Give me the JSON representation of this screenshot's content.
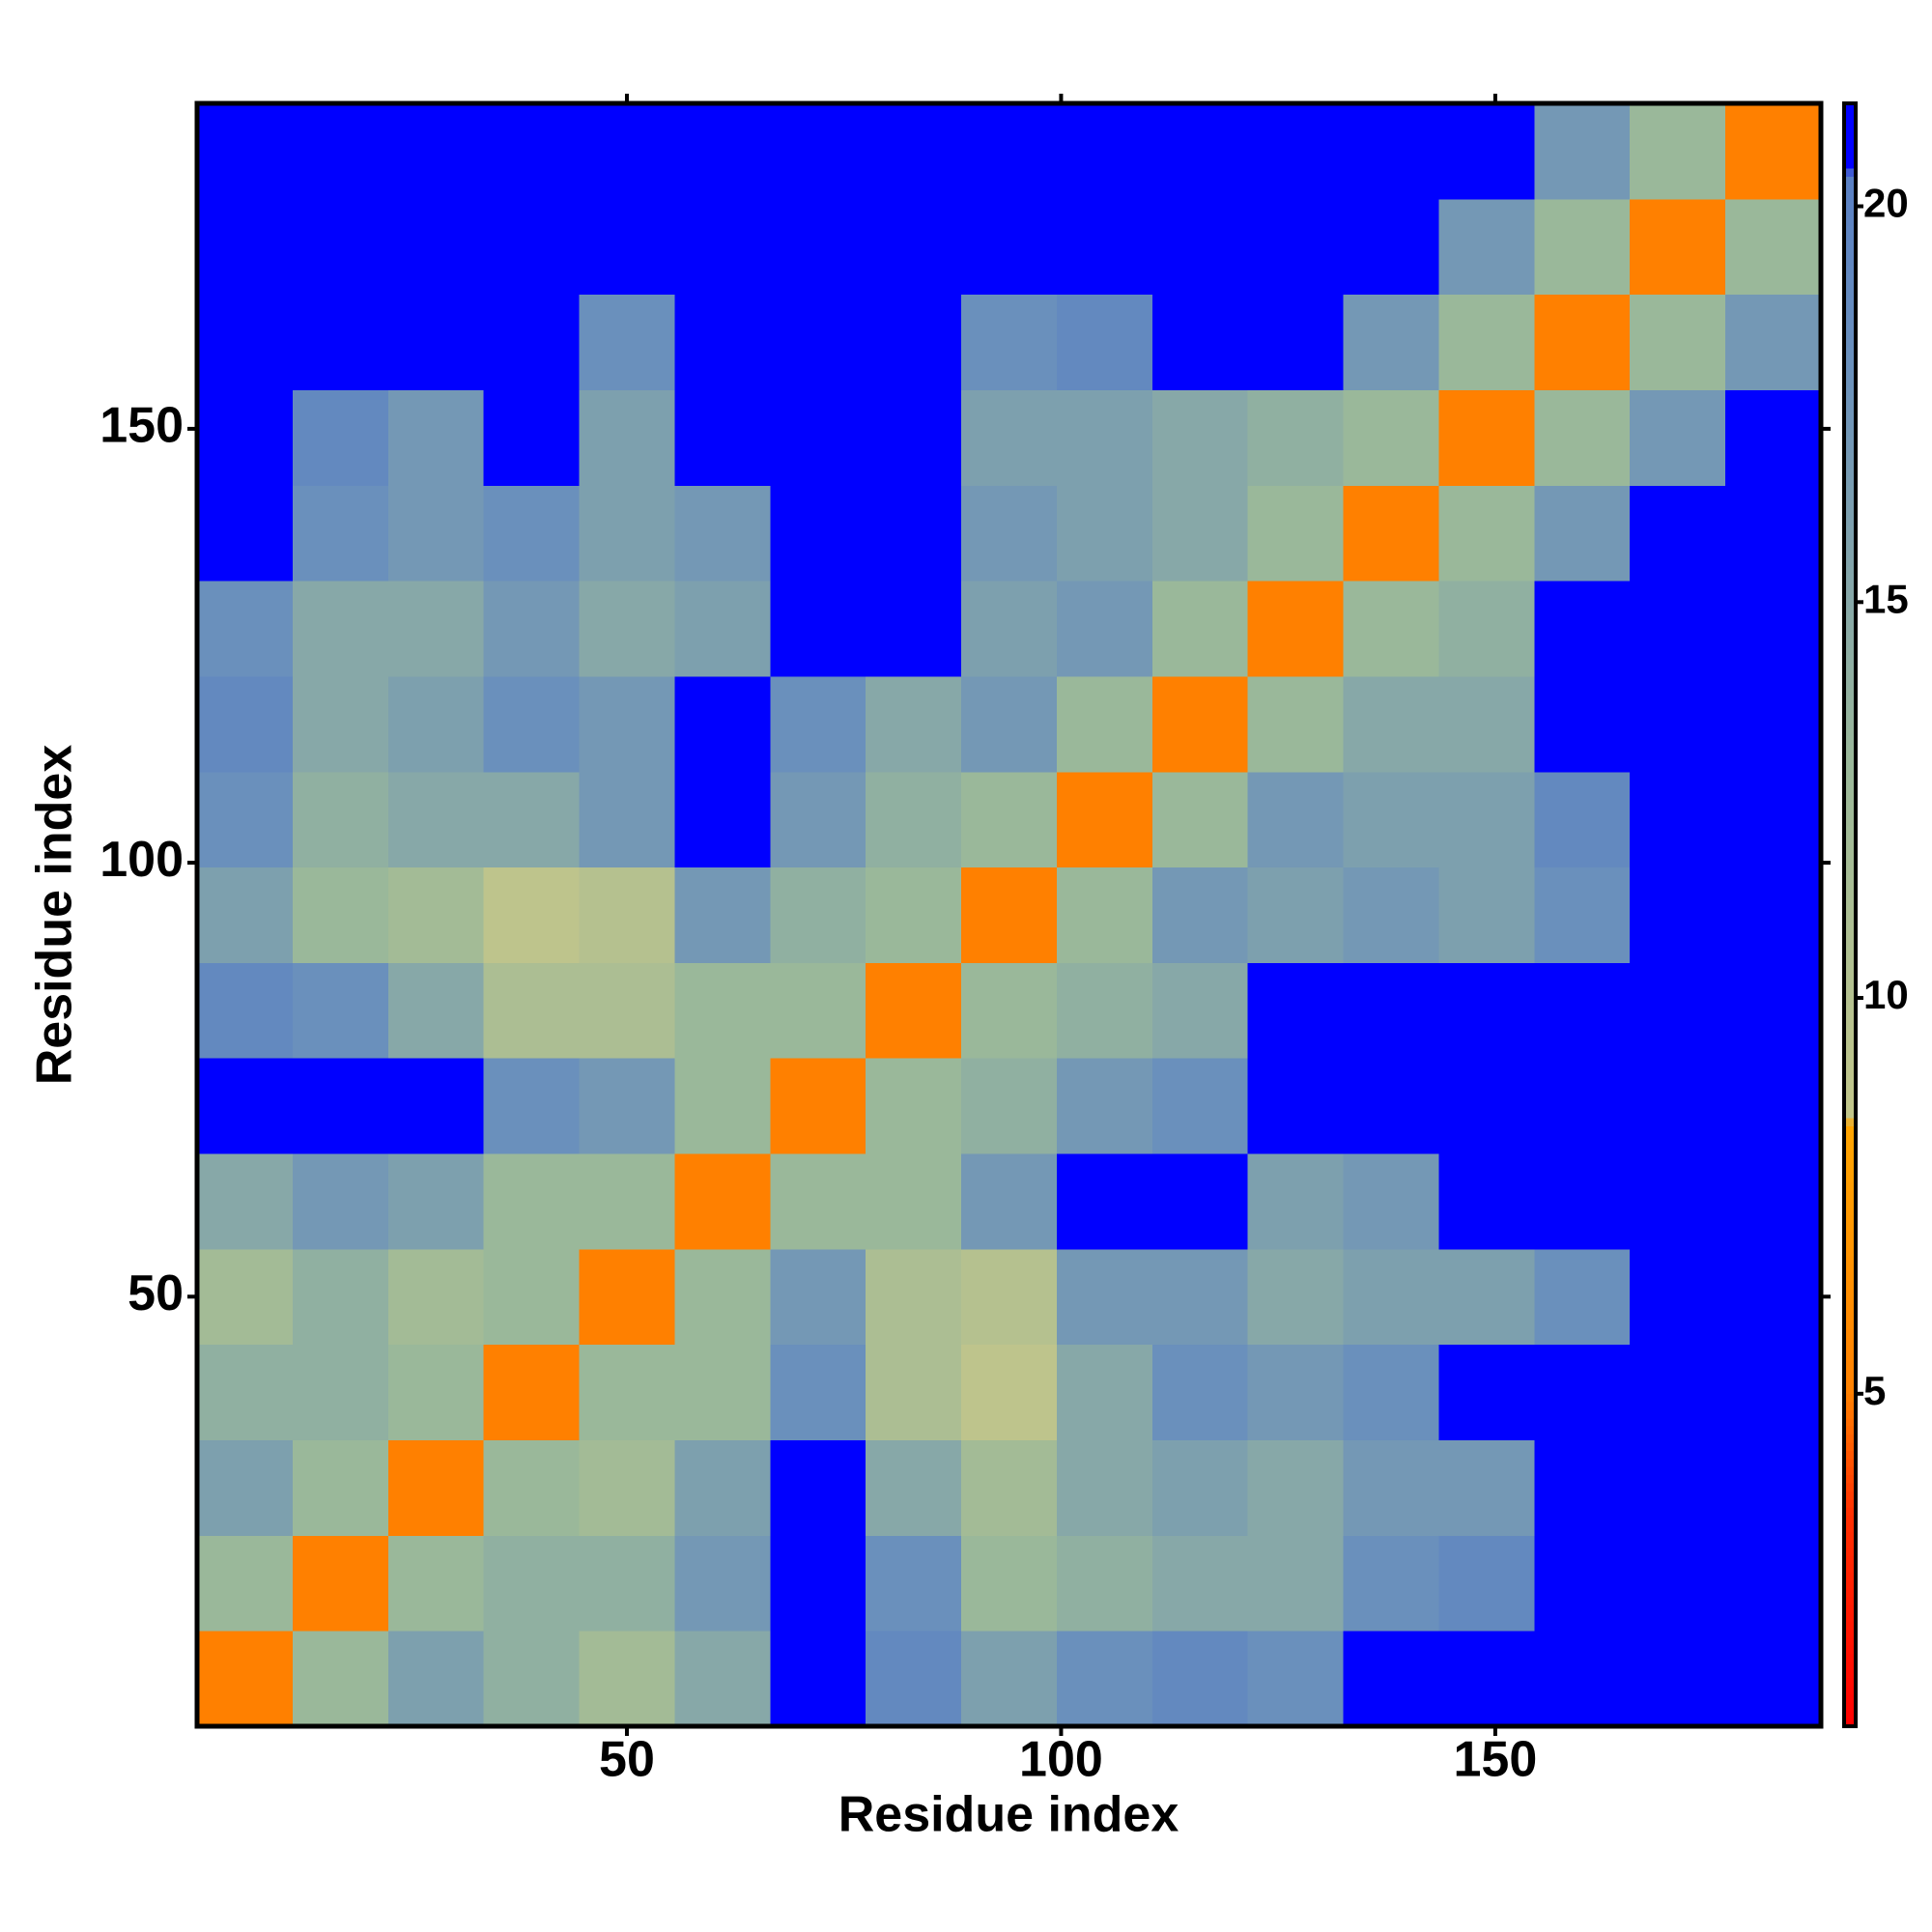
{
  "chart_data": {
    "type": "heatmap",
    "x_label": "Residue index",
    "y_label": "Residue index",
    "xbins": [
      0.5,
      11.5,
      22.5,
      33.5,
      44.5,
      55.5,
      66.5,
      77.5,
      88.5,
      99.5,
      110.5,
      121.5,
      132.5,
      143.5,
      154.5,
      165.5,
      176.5,
      187.5
    ],
    "ybins": [
      0.5,
      11.5,
      22.5,
      33.5,
      44.5,
      55.5,
      66.5,
      77.5,
      88.5,
      99.5,
      110.5,
      121.5,
      132.5,
      143.5,
      154.5,
      165.5,
      176.5,
      187.5
    ],
    "values": [
      [
        5,
        13,
        16,
        14,
        12,
        15,
        21,
        19,
        16,
        18,
        19,
        18,
        21,
        21,
        21,
        21,
        21
      ],
      [
        13,
        5,
        13,
        14,
        14,
        17,
        21,
        18,
        13,
        14,
        15,
        15,
        18,
        19,
        21,
        21,
        21
      ],
      [
        16,
        13,
        5,
        13,
        12,
        16,
        21,
        15,
        12,
        15,
        16,
        15,
        17,
        17,
        21,
        21,
        21
      ],
      [
        14,
        14,
        13,
        5,
        13,
        13,
        18,
        11,
        9,
        15,
        18,
        17,
        18,
        21,
        21,
        21,
        21
      ],
      [
        12,
        14,
        12,
        13,
        5,
        13,
        17,
        11,
        10,
        17,
        17,
        15,
        16,
        16,
        18,
        21,
        21
      ],
      [
        15,
        17,
        16,
        13,
        13,
        5,
        13,
        13,
        17,
        21,
        21,
        16,
        17,
        21,
        21,
        21,
        21
      ],
      [
        21,
        21,
        21,
        18,
        17,
        13,
        5,
        13,
        14,
        17,
        18,
        21,
        21,
        21,
        21,
        21,
        21
      ],
      [
        19,
        18,
        15,
        11,
        11,
        13,
        13,
        5,
        13,
        14,
        15,
        21,
        21,
        21,
        21,
        21,
        21
      ],
      [
        16,
        13,
        12,
        9,
        10,
        17,
        14,
        13,
        5,
        13,
        17,
        16,
        17,
        16,
        18,
        21,
        21
      ],
      [
        18,
        14,
        15,
        15,
        17,
        21,
        17,
        14,
        13,
        5,
        13,
        17,
        16,
        16,
        19,
        21,
        21
      ],
      [
        19,
        15,
        16,
        18,
        17,
        21,
        18,
        15,
        17,
        13,
        5,
        13,
        15,
        15,
        21,
        21,
        21
      ],
      [
        18,
        15,
        15,
        17,
        15,
        16,
        21,
        21,
        16,
        17,
        13,
        5,
        13,
        14,
        21,
        21,
        21
      ],
      [
        21,
        18,
        17,
        18,
        16,
        17,
        21,
        21,
        17,
        16,
        15,
        13,
        5,
        13,
        17,
        21,
        21
      ],
      [
        21,
        19,
        17,
        21,
        16,
        21,
        21,
        21,
        16,
        16,
        15,
        14,
        13,
        5,
        13,
        17,
        21
      ],
      [
        21,
        21,
        21,
        21,
        18,
        21,
        21,
        21,
        18,
        19,
        21,
        21,
        17,
        13,
        5,
        13,
        17
      ],
      [
        21,
        21,
        21,
        21,
        21,
        21,
        21,
        21,
        21,
        21,
        21,
        21,
        21,
        17,
        13,
        5,
        13
      ],
      [
        21,
        21,
        21,
        21,
        21,
        21,
        21,
        21,
        21,
        21,
        21,
        21,
        21,
        21,
        17,
        13,
        5
      ]
    ],
    "xlim": [
      0.5,
      187.5
    ],
    "ylim": [
      0.5,
      187.5
    ],
    "xticks": [
      50,
      100,
      150
    ],
    "yticks": [
      50,
      100,
      150
    ],
    "clim": [
      0.8,
      21.3
    ],
    "cticks": [
      5,
      10,
      15,
      20
    ],
    "colorscale": [
      [
        0.8,
        "#ff0000"
      ],
      [
        3.5,
        "#ff3000"
      ],
      [
        5,
        "#ff8000"
      ],
      [
        8.4,
        "#ffa500"
      ],
      [
        8.5,
        "#c2c68a"
      ],
      [
        13,
        "#9ab89a"
      ],
      [
        18,
        "#6a90bc"
      ],
      [
        20.4,
        "#5a80c4"
      ],
      [
        20.5,
        "#0000ff"
      ],
      [
        21.3,
        "#0000ff"
      ]
    ]
  }
}
